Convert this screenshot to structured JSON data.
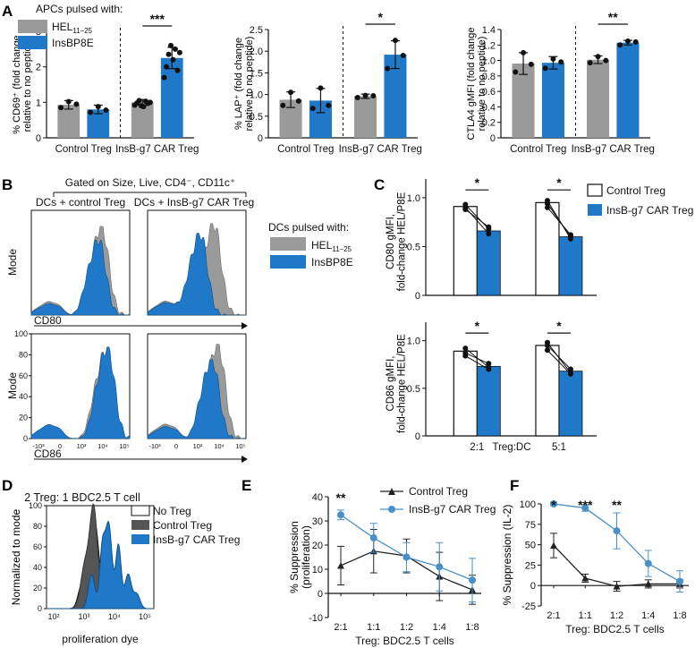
{
  "colors": {
    "grey": "#9a9a9a",
    "blue": "#1f78c8",
    "blue_light": "#4a90c8",
    "black": "#111111",
    "white": "#ffffff"
  },
  "panel_labels": {
    "a": "A",
    "b": "B",
    "c": "C",
    "d": "D",
    "e": "E",
    "f": "F"
  },
  "chart_data": [
    {
      "id": "A1",
      "type": "bar",
      "ylabel": "% CD69⁺ (fold change relative to no peptide)",
      "ylim": [
        0,
        3
      ],
      "yticks": [
        "0",
        "1",
        "2",
        "3"
      ],
      "groups": [
        "Control Treg",
        "InsB-g7 CAR Treg"
      ],
      "series": [
        {
          "name": "HEL11-25",
          "values": [
            0.93,
            1.0
          ]
        },
        {
          "name": "InsBP8E",
          "values": [
            0.8,
            2.25
          ]
        }
      ],
      "errors": [
        [
          0.12,
          0.08
        ],
        [
          0.12,
          0.3
        ]
      ],
      "points": [
        [
          [
            0.85,
            1.02,
            0.95
          ],
          [
            0.92,
            0.98,
            1.05,
            0.9,
            0.88,
            1.03,
            0.97,
            1.0
          ]
        ],
        [
          [
            0.72,
            0.88,
            0.78
          ],
          [
            1.7,
            2.0,
            2.35,
            2.6,
            2.2,
            2.5,
            1.9,
            2.4
          ]
        ]
      ],
      "significance": "***",
      "legend_title": "APCs pulsed with:",
      "legend": [
        "HEL",
        "InsBP8E"
      ],
      "legend_sub": "11–25"
    },
    {
      "id": "A2",
      "type": "bar",
      "ylabel": "% LAP⁺ (fold change relative to no peptide)",
      "ylim": [
        0,
        2.5
      ],
      "yticks": [
        "0",
        "0.5",
        "1.0",
        "1.5",
        "2.0",
        "2.5"
      ],
      "groups": [
        "Control Treg",
        "InsB-g7 CAR Treg"
      ],
      "series": [
        {
          "name": "HEL11-25",
          "values": [
            0.88,
            0.96
          ]
        },
        {
          "name": "InsBP8E",
          "values": [
            0.86,
            1.92
          ]
        }
      ],
      "errors": [
        [
          0.18,
          0.05
        ],
        [
          0.28,
          0.32
        ]
      ],
      "points": [
        [
          [
            0.75,
            1.05,
            0.85
          ],
          [
            0.93,
            0.98,
            0.97
          ]
        ],
        [
          [
            0.68,
            1.15,
            0.75
          ],
          [
            1.6,
            2.25,
            1.9
          ]
        ]
      ],
      "significance": "*"
    },
    {
      "id": "A3",
      "type": "bar",
      "ylabel": "CTLA4 gMFI (fold change relative to no peptide)",
      "ylim": [
        0,
        1.4
      ],
      "yticks": [
        "0",
        "0.2",
        "0.4",
        "0.6",
        "0.8",
        "1.0",
        "1.2",
        "1.4"
      ],
      "groups": [
        "Control Treg",
        "InsB-g7 CAR Treg"
      ],
      "series": [
        {
          "name": "HEL11-25",
          "values": [
            0.96,
            1.01
          ]
        },
        {
          "name": "InsBP8E",
          "values": [
            0.97,
            1.23
          ]
        }
      ],
      "errors": [
        [
          0.14,
          0.05
        ],
        [
          0.08,
          0.03
        ]
      ],
      "points": [
        [
          [
            0.85,
            1.1,
            0.95
          ],
          [
            0.97,
            1.05,
            1.0
          ]
        ],
        [
          [
            0.9,
            1.02,
            0.98
          ],
          [
            1.2,
            1.25,
            1.24
          ]
        ]
      ],
      "significance": "**"
    },
    {
      "id": "B",
      "type": "histogram",
      "gate_title": "Gated on Size, Live, CD4⁻, CD11c⁺",
      "columns": [
        "DCs + control Treg",
        "DCs + InsB-g7 CAR Treg"
      ],
      "ylabel": "Mode",
      "yticks": [
        "0",
        "20",
        "40",
        "60",
        "80",
        "100"
      ],
      "xticks": [
        "-10³",
        "0",
        "10³",
        "10⁴",
        "10⁵"
      ],
      "rows": [
        "CD80",
        "CD86"
      ],
      "legend_title": "DCs pulsed with:",
      "legend": [
        "HEL",
        "InsBP8E"
      ],
      "legend_sub": "11–25"
    },
    {
      "id": "C1",
      "type": "bar",
      "ylabel": "CD80 gMFI, fold-change HEL/P8E",
      "ylim": [
        0,
        1.1
      ],
      "yticks": [
        "0",
        "0.5",
        "1.0"
      ],
      "categories": [
        "2:1",
        "5:1"
      ],
      "series": [
        {
          "name": "Control Treg",
          "values": [
            0.91,
            0.95
          ]
        },
        {
          "name": "InsB-g7 CAR Treg",
          "values": [
            0.66,
            0.6
          ]
        }
      ],
      "paired": [
        [
          [
            0.93,
            0.68
          ],
          [
            0.9,
            0.63
          ],
          [
            0.88,
            0.7
          ]
        ],
        [
          [
            0.97,
            0.58
          ],
          [
            0.94,
            0.6
          ],
          [
            0.9,
            0.62
          ]
        ]
      ],
      "significance": [
        "*",
        "*"
      ],
      "legend": [
        "Control Treg",
        "InsB-g7 CAR Treg"
      ]
    },
    {
      "id": "C2",
      "type": "bar",
      "ylabel": "CD86 gMFI, fold-change HEL/P8E",
      "ylim": [
        0,
        1.1
      ],
      "yticks": [
        "0",
        "0.5",
        "1.0"
      ],
      "categories": [
        "2:1",
        "5:1"
      ],
      "xlabel": "Treg:DC",
      "series": [
        {
          "name": "Control Treg",
          "values": [
            0.89,
            0.95
          ]
        },
        {
          "name": "InsB-g7 CAR Treg",
          "values": [
            0.73,
            0.68
          ]
        }
      ],
      "paired": [
        [
          [
            0.92,
            0.72
          ],
          [
            0.87,
            0.76
          ],
          [
            0.84,
            0.7
          ]
        ],
        [
          [
            0.98,
            0.66
          ],
          [
            0.95,
            0.7
          ],
          [
            0.9,
            0.65
          ]
        ]
      ],
      "significance": [
        "*",
        "*"
      ]
    },
    {
      "id": "D",
      "type": "histogram",
      "title": "2 Treg: 1 BDC2.5 T cell",
      "ylabel": "Normalized to mode",
      "yticks": [
        "0",
        "20",
        "40",
        "60",
        "80",
        "100"
      ],
      "xticks": [
        "10²",
        "10³",
        "10⁴",
        "10⁵"
      ],
      "xlabel": "proliferation dye",
      "legend": [
        "No Treg",
        "Control Treg",
        "InsB-g7 CAR Treg"
      ]
    },
    {
      "id": "E",
      "type": "line",
      "ylabel": "% Suppression (proliferation)",
      "xlabel": "Treg: BDC2.5 T cells",
      "x": [
        "2:1",
        "1:1",
        "1:2",
        "1:4",
        "1:8"
      ],
      "ylim": [
        -10,
        40
      ],
      "yticks": [
        "-10",
        "0",
        "10",
        "20",
        "30",
        "40"
      ],
      "series": [
        {
          "name": "Control Treg",
          "values": [
            11.5,
            17.5,
            15.5,
            7,
            1.5
          ],
          "err": [
            8,
            9,
            7,
            10,
            6
          ]
        },
        {
          "name": "InsB-g7 CAR Treg",
          "values": [
            32.5,
            23,
            15,
            11,
            5.5
          ],
          "err": [
            2,
            6,
            6,
            10,
            9
          ]
        }
      ],
      "significance": [
        "**",
        "",
        "",
        "",
        ""
      ]
    },
    {
      "id": "F",
      "type": "line",
      "ylabel": "% Suppression (IL-2)",
      "xlabel": "Treg: BDC2.5 T cells",
      "x": [
        "2:1",
        "1:1",
        "1:2",
        "1:4",
        "1:8"
      ],
      "ylim": [
        -25,
        100
      ],
      "yticks": [
        "-25",
        "0",
        "25",
        "50",
        "75",
        "100"
      ],
      "series": [
        {
          "name": "Control Treg",
          "values": [
            49,
            9,
            -1,
            2,
            2
          ],
          "err": [
            15,
            5,
            6,
            5,
            5
          ]
        },
        {
          "name": "InsB-g7 CAR Treg",
          "values": [
            100,
            95,
            67,
            27,
            5
          ],
          "err": [
            2,
            4,
            22,
            16,
            13
          ]
        }
      ],
      "significance": [
        "*",
        "***",
        "**",
        "",
        ""
      ]
    }
  ]
}
